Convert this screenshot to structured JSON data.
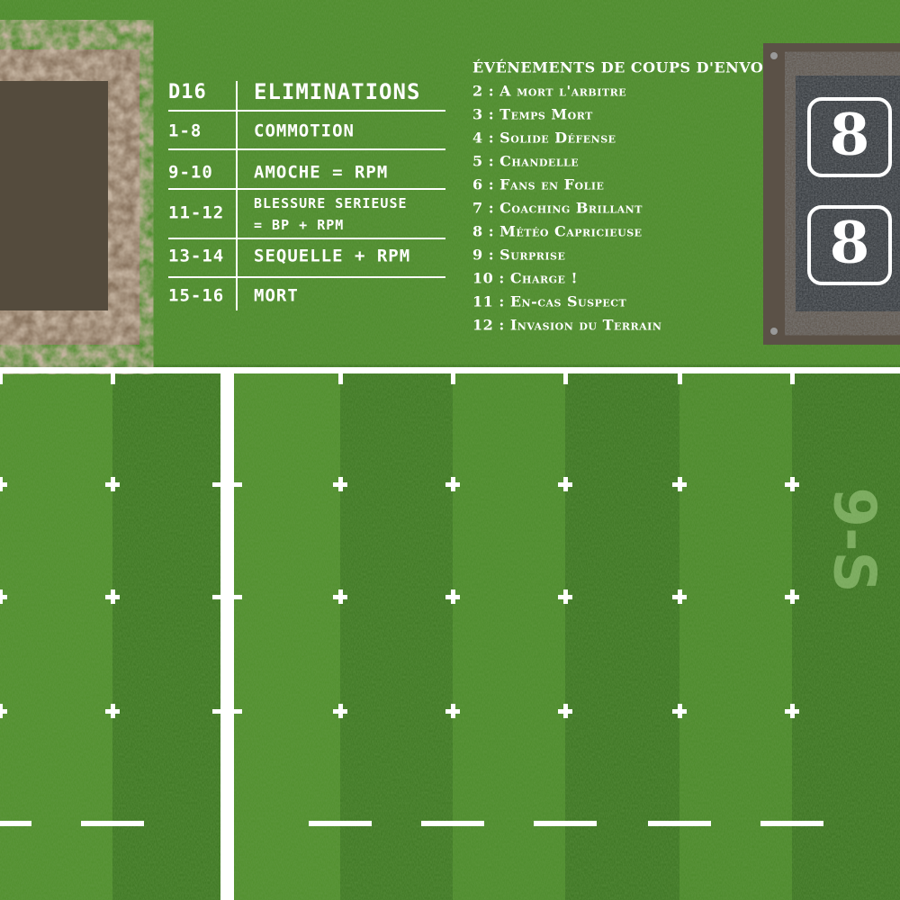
{
  "injury_table": {
    "headers": [
      "D16",
      "ELIMINATIONS"
    ],
    "rows": [
      [
        "1-8",
        "COMMOTION"
      ],
      [
        "9-10",
        "AMOCHE = RPM"
      ],
      [
        "11-12",
        "BLESSURE SERIEUSE = BP + RPM"
      ],
      [
        "13-14",
        "SEQUELLE + RPM"
      ],
      [
        "15-16",
        "MORT"
      ]
    ]
  },
  "kickoff": {
    "title": "ÉVÉNEMENTS DE COUPS D'ENVOI",
    "items": [
      "2 : A mort l'arbitre",
      "3 : Temps Mort",
      "4 : Solide Défense",
      "5 : Chandelle",
      "6 : Fans en Folie",
      "7 : Coaching Brillant",
      "8 : Météo Capricieuse",
      "9 : Surprise",
      "10 : Charge !",
      "11 : En-cas Suspect",
      "12 : Invasion du Terrain"
    ]
  },
  "scoreboard": {
    "scores": [
      "8",
      "8"
    ]
  },
  "field": {
    "marking": "9-S"
  }
}
